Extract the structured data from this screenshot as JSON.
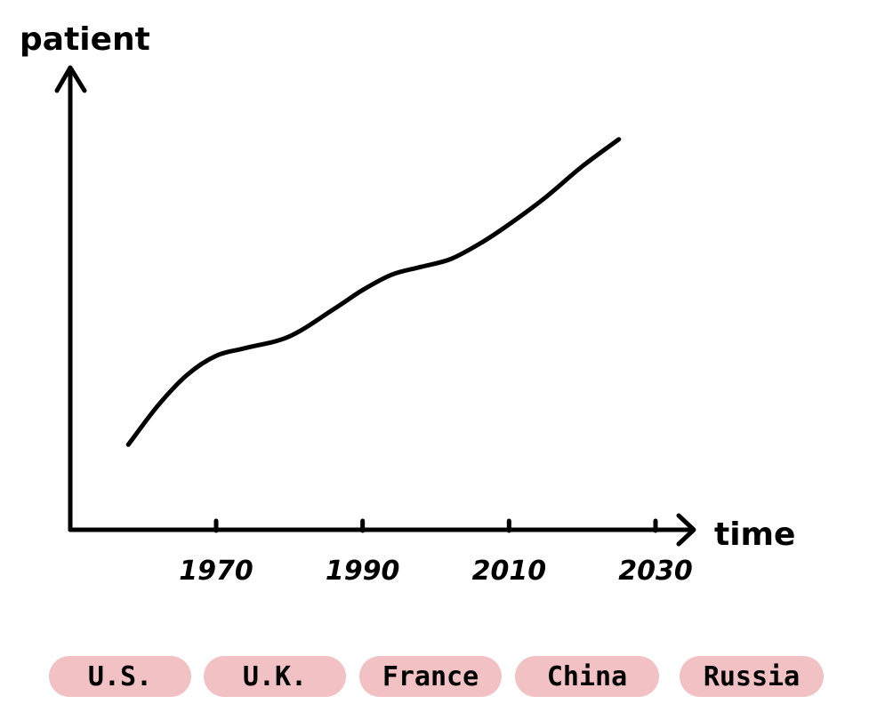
{
  "chart_data": {
    "type": "line",
    "xlabel": "time",
    "ylabel": "patient",
    "x_ticks": [
      "1970",
      "1990",
      "2010",
      "2030"
    ],
    "xlim": [
      1950,
      2035
    ],
    "ylim": [
      0,
      100
    ],
    "series": [
      {
        "x": [
          1958,
          1962,
          1966,
          1970,
          1974,
          1980,
          1986,
          1990,
          1994,
          1998,
          2002,
          2006,
          2010,
          2015,
          2020,
          2025
        ],
        "values": [
          22,
          32,
          40,
          45,
          47,
          50,
          57,
          62,
          66,
          68,
          70,
          74,
          79,
          86,
          94,
          101
        ]
      }
    ],
    "grid": false,
    "line_color": "#000000"
  },
  "legend": {
    "items": [
      "U.S.",
      "U.K.",
      "France",
      "China",
      "Russia"
    ],
    "bg_color": "#F2C1C4"
  }
}
